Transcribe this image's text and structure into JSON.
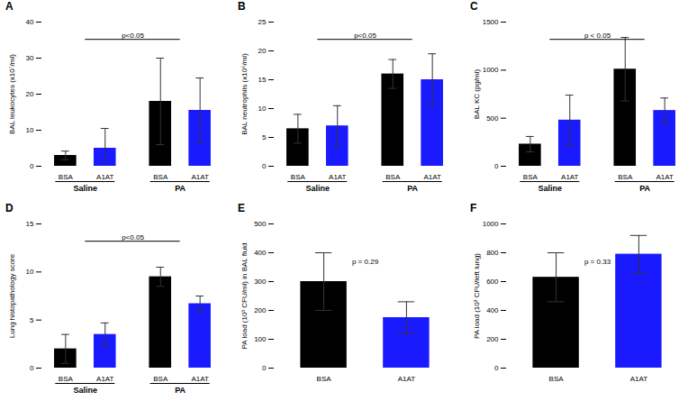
{
  "chart_data": [
    {
      "type": "bar",
      "title": "A",
      "ylabel": "BAL leukocytes (x10⁷/ml)",
      "categories": [
        "BSA",
        "A1AT",
        "BSA",
        "A1AT"
      ],
      "groups": [
        "Saline",
        "PA"
      ],
      "values": [
        3.0,
        5.0,
        18.0,
        15.5
      ],
      "errors": [
        1.2,
        5.5,
        12.0,
        9.0
      ],
      "colors": [
        "#000000",
        "#1a1aff",
        "#000000",
        "#1a1aff"
      ],
      "ylim": [
        0,
        40
      ],
      "yticks": [
        0,
        10,
        20,
        30,
        40
      ],
      "annotation": "p<0.05"
    },
    {
      "type": "bar",
      "title": "B",
      "ylabel": "BAL neutrophils (x10⁵/ml)",
      "categories": [
        "BSA",
        "A1AT",
        "BSA",
        "A1AT"
      ],
      "groups": [
        "Saline",
        "PA"
      ],
      "values": [
        6.5,
        7.0,
        16.0,
        15.0
      ],
      "errors": [
        2.5,
        3.5,
        2.5,
        4.5
      ],
      "colors": [
        "#000000",
        "#1a1aff",
        "#000000",
        "#1a1aff"
      ],
      "ylim": [
        0,
        25
      ],
      "yticks": [
        0,
        5,
        10,
        15,
        20,
        25
      ],
      "annotation": "p<0.05"
    },
    {
      "type": "bar",
      "title": "C",
      "ylabel": "BAL KC (pg/ml)",
      "categories": [
        "BSA",
        "A1AT",
        "BSA",
        "A1AT"
      ],
      "groups": [
        "Saline",
        "PA"
      ],
      "values": [
        230,
        480,
        1010,
        580
      ],
      "errors": [
        80,
        260,
        330,
        130
      ],
      "colors": [
        "#000000",
        "#1a1aff",
        "#000000",
        "#1a1aff"
      ],
      "ylim": [
        0,
        1500
      ],
      "yticks": [
        0,
        500,
        1000,
        1500
      ],
      "annotation": "p < 0.05"
    },
    {
      "type": "bar",
      "title": "D",
      "ylabel": "Lung histopathology score",
      "categories": [
        "BSA",
        "A1AT",
        "BSA",
        "A1AT"
      ],
      "groups": [
        "Saline",
        "PA"
      ],
      "values": [
        2.0,
        3.5,
        9.5,
        6.7
      ],
      "errors": [
        1.5,
        1.2,
        1.0,
        0.8
      ],
      "colors": [
        "#000000",
        "#1a1aff",
        "#000000",
        "#1a1aff"
      ],
      "ylim": [
        0,
        15
      ],
      "yticks": [
        0,
        5,
        10,
        15
      ],
      "annotation": "p<0.05"
    },
    {
      "type": "bar",
      "title": "E",
      "ylabel": "PA load (10³ CFU/ml) in BAL fluid",
      "categories": [
        "BSA",
        "A1AT"
      ],
      "values": [
        300,
        175
      ],
      "errors": [
        100,
        55
      ],
      "colors": [
        "#000000",
        "#1a1aff"
      ],
      "ylim": [
        0,
        500
      ],
      "yticks": [
        0,
        100,
        200,
        300,
        400,
        500
      ],
      "annotation": "p = 0.29"
    },
    {
      "type": "bar",
      "title": "F",
      "ylabel": "PA load (10³ CFU/left lung)",
      "categories": [
        "BSA",
        "A1AT"
      ],
      "values": [
        630,
        790
      ],
      "errors": [
        170,
        130
      ],
      "colors": [
        "#000000",
        "#1a1aff"
      ],
      "ylim": [
        0,
        1000
      ],
      "yticks": [
        0,
        200,
        400,
        600,
        800,
        1000
      ],
      "annotation": "p = 0.33"
    }
  ]
}
